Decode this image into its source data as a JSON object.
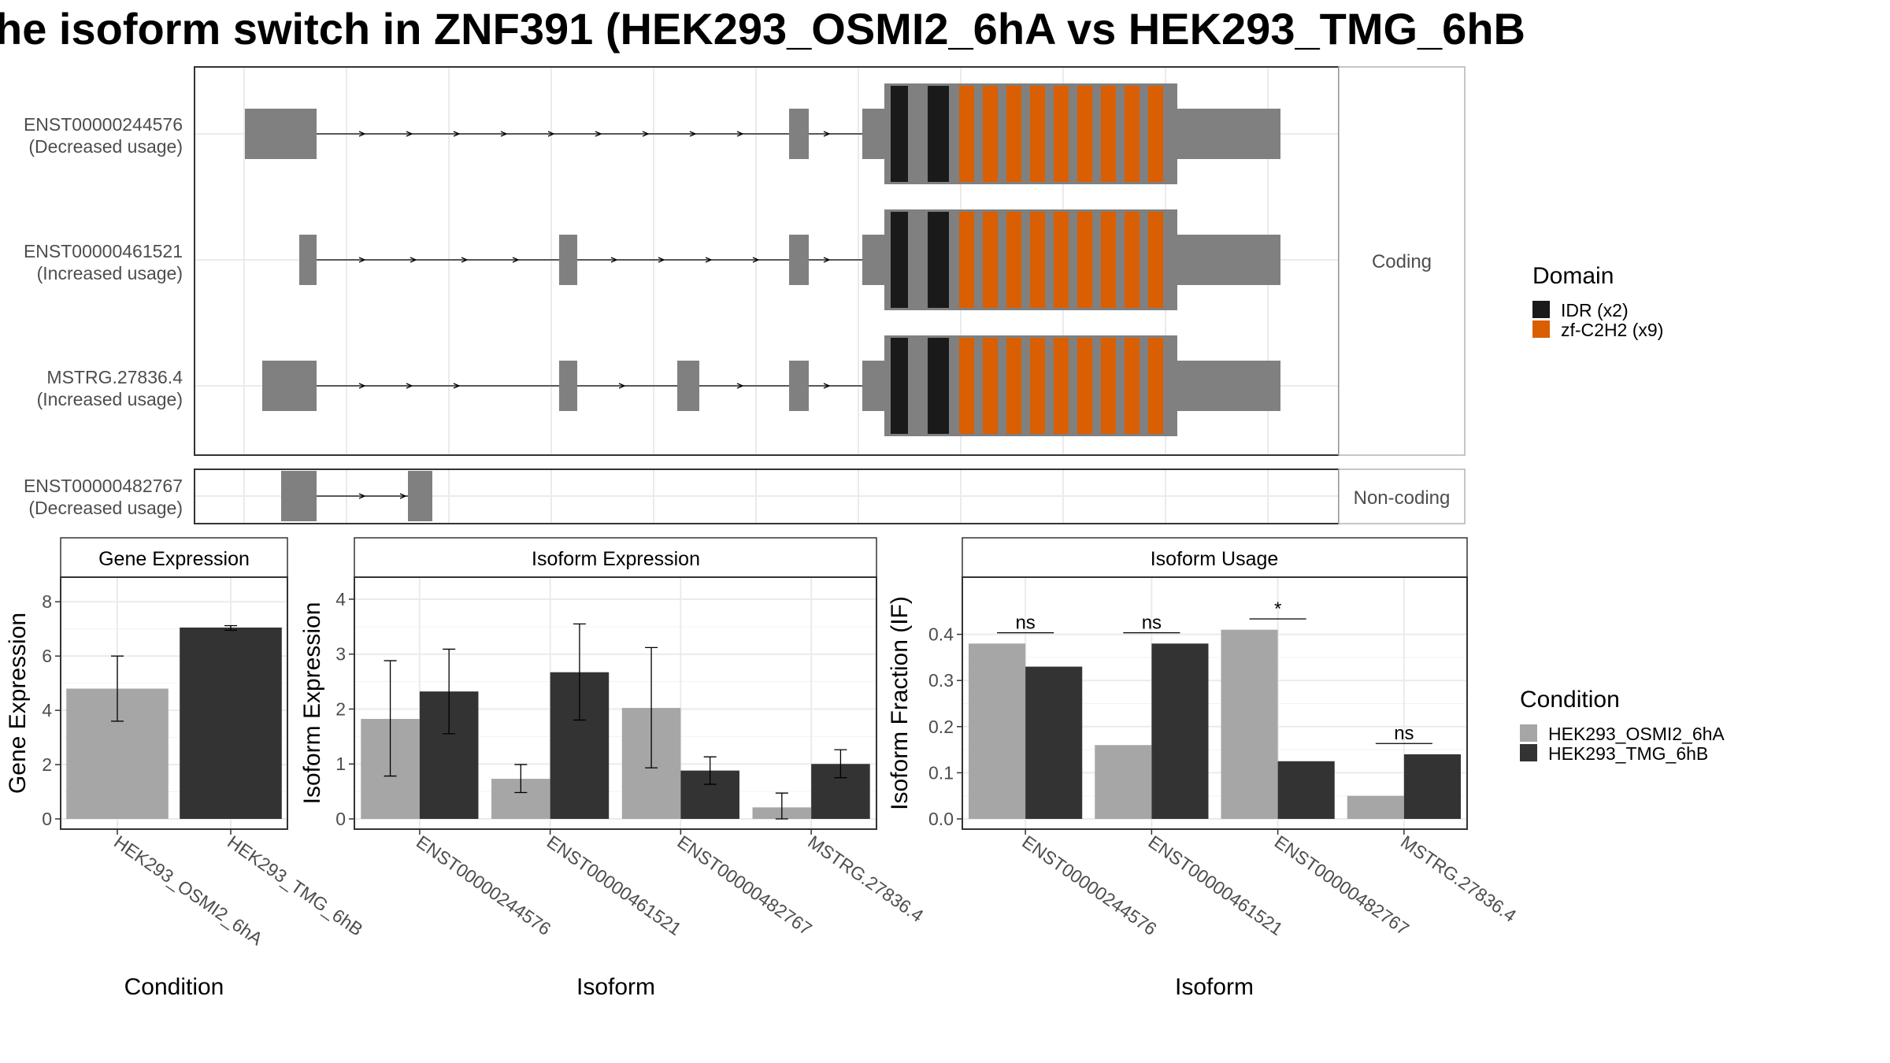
{
  "title": "he isoform switch in ZNF391 (HEK293_OSMI2_6hA vs HEK293_TMG_6hB",
  "colors": {
    "exon": "#808080",
    "idr": "#1a1a1a",
    "zf": "#d95f02",
    "cond_a": "#a6a6a6",
    "cond_b": "#333333",
    "grid": "#ebebeb",
    "strip_bg": "#ffffff",
    "panel_border": "#333333"
  },
  "structure": {
    "coding_label": "Coding",
    "noncoding_label": "Non-coding",
    "isoforms": [
      {
        "id": "ENST00000244576",
        "usage": "(Decreased usage)",
        "group": "coding"
      },
      {
        "id": "ENST00000461521",
        "usage": "(Increased usage)",
        "group": "coding"
      },
      {
        "id": "MSTRG.27836.4",
        "usage": "(Increased usage)",
        "group": "coding"
      },
      {
        "id": "ENST00000482767",
        "usage": "(Decreased usage)",
        "group": "noncoding"
      }
    ]
  },
  "legend_domain": {
    "title": "Domain",
    "items": [
      {
        "label": "IDR (x2)",
        "color": "#1a1a1a"
      },
      {
        "label": "zf-C2H2 (x9)",
        "color": "#d95f02"
      }
    ]
  },
  "legend_condition": {
    "title": "Condition",
    "items": [
      {
        "label": "HEK293_OSMI2_6hA",
        "color": "#a6a6a6"
      },
      {
        "label": "HEK293_TMG_6hB",
        "color": "#333333"
      }
    ]
  },
  "chart_data": [
    {
      "type": "bar",
      "title": "Gene Expression",
      "xlabel": "Condition",
      "ylabel": "Gene Expression",
      "ylim": [
        0,
        8.5
      ],
      "yticks": [
        0,
        2,
        4,
        6,
        8
      ],
      "categories": [
        "HEK293_OSMI2_6hA",
        "HEK293_TMG_6hB"
      ],
      "values": [
        4.8,
        7.05
      ],
      "err_low": [
        3.6,
        6.95
      ],
      "err_high": [
        6.0,
        7.12
      ]
    },
    {
      "type": "bar",
      "title": "Isoform Expression",
      "xlabel": "Isoform",
      "ylabel": "Isoform Expression",
      "ylim": [
        0,
        4.2
      ],
      "yticks": [
        0,
        1,
        2,
        3,
        4
      ],
      "categories": [
        "ENST00000244576",
        "ENST00000461521",
        "ENST00000482767",
        "MSTRG.27836.4"
      ],
      "series": [
        {
          "name": "HEK293_OSMI2_6hA",
          "values": [
            1.82,
            0.73,
            2.02,
            0.21
          ],
          "err_low": [
            0.78,
            0.48,
            0.93,
            0.0
          ],
          "err_high": [
            2.88,
            0.99,
            3.12,
            0.47
          ]
        },
        {
          "name": "HEK293_TMG_6hB",
          "values": [
            2.32,
            2.67,
            0.88,
            1.0
          ],
          "err_low": [
            1.55,
            1.8,
            0.63,
            0.75
          ],
          "err_high": [
            3.09,
            3.55,
            1.13,
            1.26
          ]
        }
      ]
    },
    {
      "type": "bar",
      "title": "Isoform Usage",
      "xlabel": "Isoform",
      "ylabel": "Isoform Fraction (IF)",
      "ylim": [
        0,
        0.5
      ],
      "yticks": [
        0.0,
        0.1,
        0.2,
        0.3,
        0.4
      ],
      "ytick_labels": [
        "0.0",
        "0.1",
        "0.2",
        "0.3",
        "0.4"
      ],
      "categories": [
        "ENST00000244576",
        "ENST00000461521",
        "ENST00000482767",
        "MSTRG.27836.4"
      ],
      "series": [
        {
          "name": "HEK293_OSMI2_6hA",
          "values": [
            0.38,
            0.16,
            0.41,
            0.05
          ]
        },
        {
          "name": "HEK293_TMG_6hB",
          "values": [
            0.33,
            0.38,
            0.125,
            0.14
          ]
        }
      ],
      "significance": [
        {
          "label": "ns",
          "y": 0.4
        },
        {
          "label": "ns",
          "y": 0.4
        },
        {
          "label": "*",
          "y": 0.43
        },
        {
          "label": "ns",
          "y": 0.16
        }
      ]
    }
  ]
}
